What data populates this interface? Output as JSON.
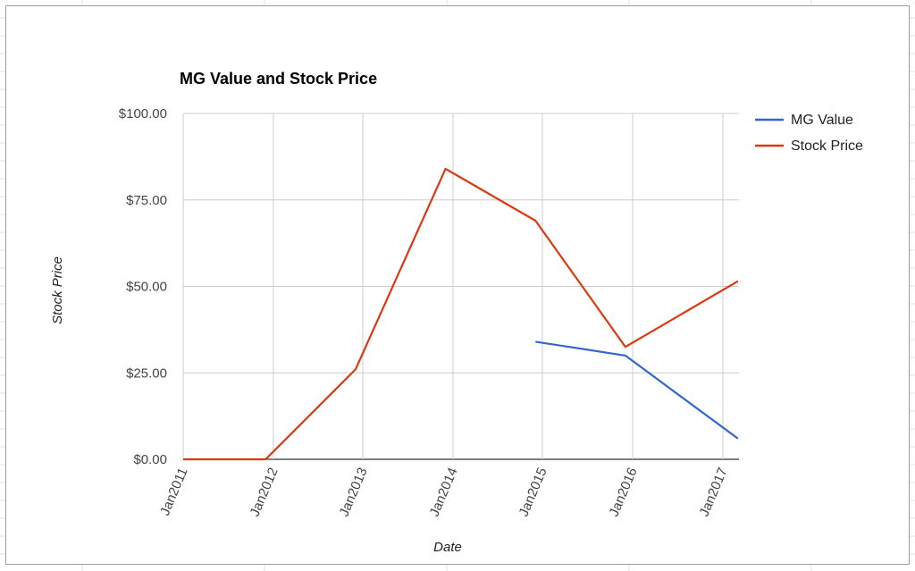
{
  "chart_data": {
    "type": "line",
    "title": "MG Value and Stock Price",
    "xlabel": "Date",
    "ylabel": "Stock Price",
    "ylim": [
      0,
      100
    ],
    "yticks": [
      "$0.00",
      "$25.00",
      "$50.00",
      "$75.00",
      "$100.00"
    ],
    "categories": [
      "Jan2011",
      "Jan2012",
      "Jan2013",
      "Jan2014",
      "Jan2015",
      "Jan2016",
      "Jan2017"
    ],
    "grid": true,
    "legend_position": "right",
    "series": [
      {
        "name": "MG Value",
        "color": "#3366cc",
        "points": [
          {
            "x": "2014-12",
            "y": 34
          },
          {
            "x": "2015-12",
            "y": 30
          },
          {
            "x": "2017-03",
            "y": 6
          }
        ]
      },
      {
        "name": "Stock Price",
        "color": "#dc3912",
        "points": [
          {
            "x": "2011-01",
            "y": 0
          },
          {
            "x": "2011-12",
            "y": 0
          },
          {
            "x": "2012-12",
            "y": 26
          },
          {
            "x": "2013-12",
            "y": 84
          },
          {
            "x": "2014-12",
            "y": 69
          },
          {
            "x": "2015-12",
            "y": 32.5
          },
          {
            "x": "2017-03",
            "y": 51.5
          }
        ]
      }
    ]
  }
}
